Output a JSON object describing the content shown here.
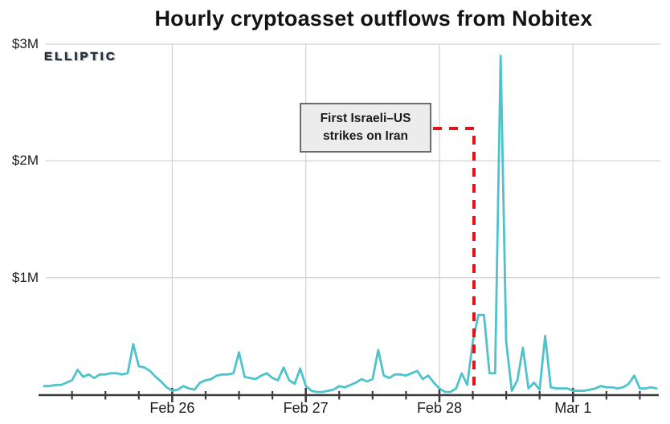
{
  "chart": {
    "title": "Hourly cryptoasset outflows from Nobitex"
  },
  "branding": {
    "logo_text": "ELLIPTIC"
  },
  "annotation_box": {
    "line1": "First Israeli–US",
    "line2": "strikes on Iran"
  },
  "chart_data": {
    "type": "line",
    "title": "Hourly cryptoasset outflows from Nobitex",
    "series_name": "Hourly cryptoasset outflows from Nobitex",
    "unit": "USD millions",
    "x_unit": "hours",
    "x_start": "Feb 25 01:00",
    "grid": true,
    "legend": false,
    "ylim": [
      0,
      3
    ],
    "values": [
      0.07,
      0.07,
      0.08,
      0.08,
      0.1,
      0.12,
      0.21,
      0.15,
      0.17,
      0.14,
      0.17,
      0.17,
      0.18,
      0.18,
      0.17,
      0.18,
      0.43,
      0.24,
      0.23,
      0.2,
      0.15,
      0.11,
      0.06,
      0.03,
      0.04,
      0.07,
      0.05,
      0.04,
      0.1,
      0.12,
      0.13,
      0.16,
      0.17,
      0.17,
      0.18,
      0.36,
      0.15,
      0.14,
      0.13,
      0.16,
      0.18,
      0.14,
      0.12,
      0.23,
      0.12,
      0.09,
      0.22,
      0.07,
      0.03,
      0.02,
      0.02,
      0.03,
      0.04,
      0.07,
      0.06,
      0.08,
      0.1,
      0.13,
      0.11,
      0.13,
      0.38,
      0.16,
      0.14,
      0.17,
      0.17,
      0.16,
      0.18,
      0.2,
      0.13,
      0.16,
      0.1,
      0.05,
      0.02,
      0.02,
      0.05,
      0.18,
      0.08,
      0.45,
      0.68,
      0.68,
      0.18,
      0.18,
      2.9,
      0.45,
      0.03,
      0.12,
      0.4,
      0.05,
      0.1,
      0.04,
      0.5,
      0.06,
      0.05,
      0.05,
      0.05,
      0.03,
      0.03,
      0.03,
      0.04,
      0.05,
      0.07,
      0.06,
      0.06,
      0.05,
      0.06,
      0.09,
      0.16,
      0.05,
      0.05,
      0.06,
      0.05
    ],
    "y_ticks": [
      {
        "value": 1,
        "label": "$1M"
      },
      {
        "value": 2,
        "label": "$2M"
      },
      {
        "value": 3,
        "label": "$3M"
      }
    ],
    "x_ticks": [
      {
        "index": 23,
        "label": "Feb 26"
      },
      {
        "index": 47,
        "label": "Feb 27"
      },
      {
        "index": 71,
        "label": "Feb 28"
      },
      {
        "index": 95,
        "label": "Mar 1"
      }
    ],
    "minor_tick_every_hours": 6,
    "annotation": {
      "text": "First Israeli–US strikes on Iran",
      "event_x_index": 77.2,
      "event_line_top_value_m": 2.28
    },
    "colors": {
      "line": "#4ec3cb",
      "annotation_red": "#f20d12",
      "grid": "#d4d4d4",
      "axis": "#3d3d3d",
      "box_fill": "#ececec",
      "box_border": "#6b6b6b",
      "text": "#141414"
    }
  }
}
